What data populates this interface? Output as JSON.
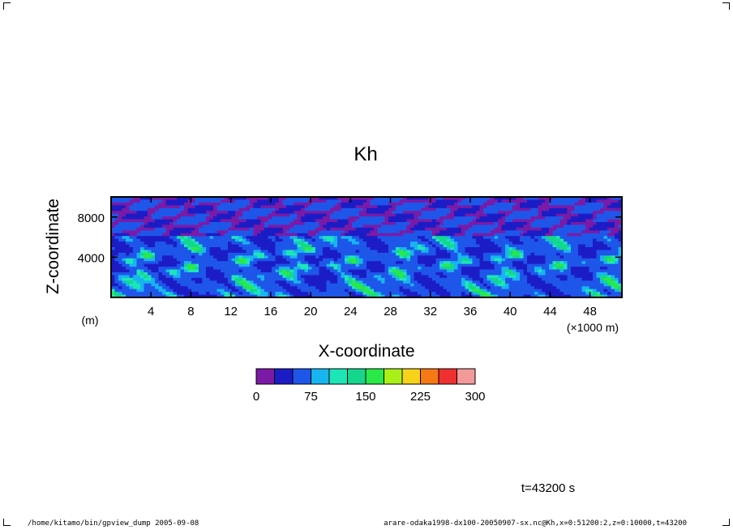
{
  "chart_data": {
    "type": "heatmap",
    "title": "Kh",
    "xlabel": "X-coordinate",
    "ylabel": "Z-coordinate",
    "x_unit_label": "(×1000 m)",
    "y_unit_label": "(m)",
    "xlim": [
      0,
      51.2
    ],
    "ylim": [
      0,
      10000
    ],
    "x_ticks": [
      4,
      8,
      12,
      16,
      20,
      24,
      28,
      32,
      36,
      40,
      44,
      48
    ],
    "y_ticks": [
      4000,
      8000
    ],
    "colorbar": {
      "levels": [
        0,
        25,
        50,
        75,
        100,
        125,
        150,
        175,
        200,
        225,
        250,
        275,
        300
      ],
      "tick_labels": [
        "0",
        "75",
        "150",
        "225",
        "300"
      ],
      "tick_values": [
        0,
        75,
        150,
        225,
        300
      ],
      "colors": [
        "#7b1aa6",
        "#1c1cc6",
        "#1e56ea",
        "#18b4f0",
        "#1ce6b8",
        "#14d68c",
        "#2ae848",
        "#a8f018",
        "#f6d21a",
        "#f57a16",
        "#f03030",
        "#f2999a"
      ]
    },
    "time_label": "t=43200 s"
  },
  "footer": {
    "left": "/home/kitamo/bin/gpview_dump  2005-09-08",
    "right": "arare-odaka1998-dx100-20050907-sx.nc@Kh,x=0:51200:2,z=0:10000,t=43200"
  }
}
